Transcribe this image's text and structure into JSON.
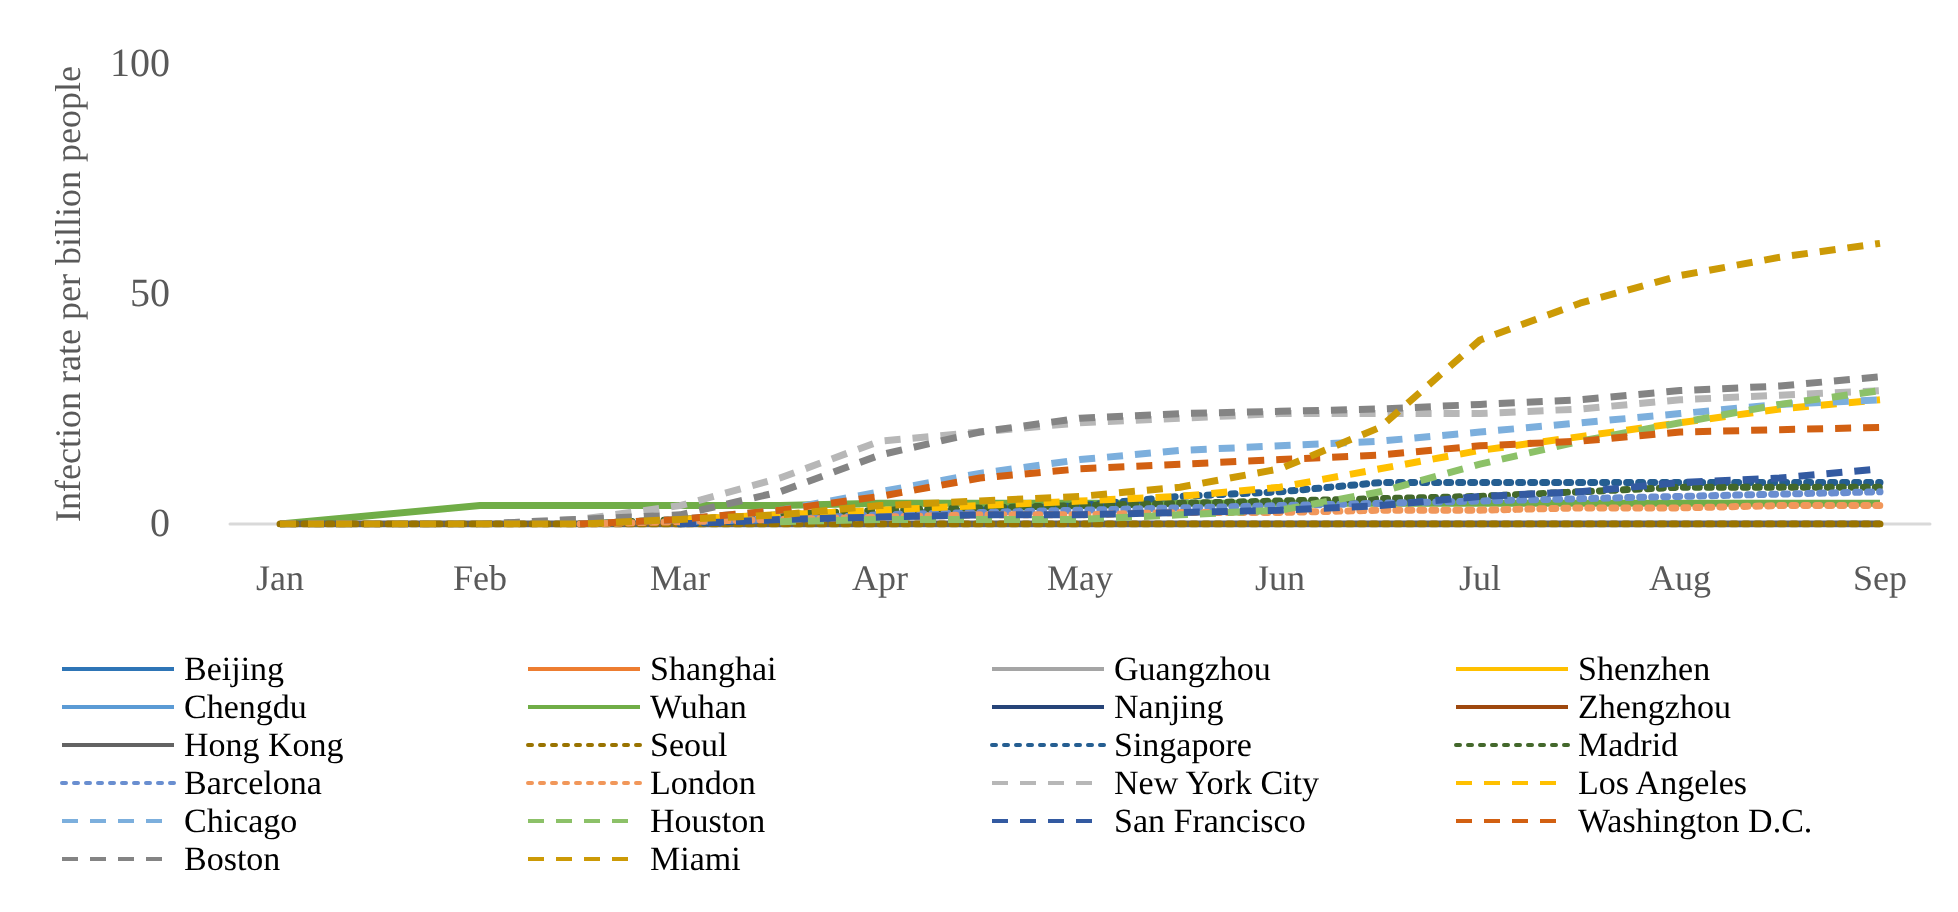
{
  "chart_data": {
    "type": "line",
    "ylabel": "Infection rate per billion people",
    "categories": [
      "Jan",
      null,
      "Feb",
      null,
      "Mar",
      null,
      "Apr",
      null,
      "May",
      null,
      "Jun",
      null,
      "Jul",
      null,
      "Aug",
      null,
      "Sep"
    ],
    "ylim": [
      0,
      100
    ],
    "yticks": [
      0,
      50,
      100
    ],
    "grid": false,
    "legend": "bottom",
    "marker": "none",
    "series": [
      {
        "name": "Beijing",
        "color": "#2e75b6",
        "line_style": "solid",
        "values": [
          null,
          null,
          null,
          null,
          null,
          null,
          null,
          null,
          null,
          null,
          null,
          null,
          null,
          null,
          null,
          null,
          null
        ]
      },
      {
        "name": "Shanghai",
        "color": "#ed7d31",
        "line_style": "solid",
        "values": [
          null,
          null,
          null,
          null,
          null,
          null,
          null,
          null,
          null,
          null,
          null,
          null,
          null,
          null,
          null,
          null,
          null
        ]
      },
      {
        "name": "Guangzhou",
        "color": "#a5a5a5",
        "line_style": "solid",
        "values": [
          null,
          null,
          null,
          null,
          null,
          null,
          null,
          null,
          null,
          null,
          null,
          null,
          null,
          null,
          null,
          null,
          null
        ]
      },
      {
        "name": "Shenzhen",
        "color": "#ffc000",
        "line_style": "solid",
        "values": [
          null,
          null,
          null,
          null,
          null,
          null,
          null,
          null,
          null,
          null,
          null,
          null,
          null,
          null,
          null,
          null,
          null
        ]
      },
      {
        "name": "Chengdu",
        "color": "#5b9bd5",
        "line_style": "solid",
        "values": [
          null,
          null,
          null,
          null,
          null,
          null,
          null,
          null,
          null,
          null,
          null,
          null,
          null,
          null,
          null,
          null,
          null
        ]
      },
      {
        "name": "Wuhan",
        "color": "#70ad47",
        "line_style": "solid",
        "values": [
          0,
          2,
          4,
          4,
          4,
          4,
          4.5,
          4.5,
          4.5,
          4.5,
          4.5,
          4.5,
          4.5,
          4.5,
          4.5,
          4.5,
          4.5
        ]
      },
      {
        "name": "Nanjing",
        "color": "#264478",
        "line_style": "solid",
        "values": [
          null,
          null,
          null,
          null,
          null,
          null,
          null,
          null,
          null,
          null,
          null,
          null,
          null,
          null,
          null,
          null,
          null
        ]
      },
      {
        "name": "Zhengzhou",
        "color": "#9e480e",
        "line_style": "solid",
        "values": [
          null,
          null,
          null,
          null,
          null,
          null,
          null,
          null,
          null,
          null,
          null,
          null,
          null,
          null,
          null,
          null,
          null
        ]
      },
      {
        "name": "Hong Kong",
        "color": "#636363",
        "line_style": "solid",
        "values": [
          0,
          0,
          0,
          0,
          0,
          0,
          0,
          0,
          0,
          0,
          0,
          0,
          0,
          0,
          0,
          0,
          0
        ]
      },
      {
        "name": "Seoul",
        "color": "#997300",
        "line_style": "dotted",
        "values": [
          0,
          0,
          0,
          0,
          0,
          0,
          0,
          0,
          0,
          0,
          0,
          0,
          0,
          0,
          0,
          0,
          0
        ]
      },
      {
        "name": "Singapore",
        "color": "#255e91",
        "line_style": "dotted",
        "values": [
          null,
          null,
          null,
          null,
          0,
          1,
          2,
          3,
          4,
          6,
          7,
          9,
          9,
          9,
          9,
          9,
          9
        ]
      },
      {
        "name": "Madrid",
        "color": "#43682b",
        "line_style": "dotted",
        "values": [
          null,
          null,
          null,
          0,
          1,
          2,
          3,
          3.5,
          4,
          4.5,
          5,
          5.5,
          6,
          7,
          8,
          8,
          8
        ]
      },
      {
        "name": "Barcelona",
        "color": "#698ed0",
        "line_style": "dotted",
        "values": [
          null,
          null,
          null,
          null,
          0.5,
          1,
          2,
          2.5,
          3,
          3.5,
          4,
          4.5,
          5,
          5.5,
          6,
          6.5,
          7
        ]
      },
      {
        "name": "London",
        "color": "#f1975a",
        "line_style": "dotted",
        "values": [
          null,
          null,
          null,
          0,
          0.5,
          1,
          1.5,
          2,
          2,
          2.5,
          2.5,
          3,
          3,
          3.5,
          3.5,
          4,
          4
        ]
      },
      {
        "name": "New York City",
        "color": "#b7b7b7",
        "line_style": "dashed",
        "values": [
          0,
          0,
          0,
          1,
          4,
          10,
          18,
          20,
          22,
          23,
          24,
          24,
          24,
          25,
          27,
          28,
          29
        ]
      },
      {
        "name": "Los Angeles",
        "color": "#ffc000",
        "line_style": "dashed",
        "values": [
          null,
          null,
          null,
          null,
          1,
          2,
          3,
          4,
          5,
          6,
          8,
          12,
          16,
          19,
          22,
          25,
          27
        ]
      },
      {
        "name": "Chicago",
        "color": "#7cafdd",
        "line_style": "dashed",
        "values": [
          null,
          null,
          null,
          0,
          1,
          3,
          7,
          11,
          14,
          16,
          17,
          18,
          20,
          22,
          24,
          26,
          27
        ]
      },
      {
        "name": "Houston",
        "color": "#8cc168",
        "line_style": "dashed",
        "values": [
          null,
          null,
          null,
          null,
          null,
          0.5,
          1,
          1,
          1,
          2,
          3,
          7,
          13,
          18,
          22,
          26,
          29
        ]
      },
      {
        "name": "San Francisco",
        "color": "#335aa1",
        "line_style": "dashed",
        "values": [
          null,
          null,
          null,
          null,
          0,
          1,
          1.5,
          2,
          2,
          2.5,
          3,
          4,
          6,
          7,
          9,
          10,
          12
        ]
      },
      {
        "name": "Washington D.C.",
        "color": "#d26012",
        "line_style": "dashed",
        "values": [
          null,
          null,
          null,
          0,
          1,
          3,
          6,
          10,
          12,
          13,
          14,
          15,
          17,
          18,
          20,
          20.5,
          21
        ]
      },
      {
        "name": "Boston",
        "color": "#848484",
        "line_style": "dashed",
        "values": [
          0,
          0,
          0,
          1,
          2,
          7,
          15,
          20,
          23,
          24,
          24.5,
          25,
          26,
          27,
          29,
          30,
          32
        ]
      },
      {
        "name": "Miami",
        "color": "#cc9a06",
        "line_style": "dashed",
        "values": [
          0,
          0,
          0,
          0,
          1,
          2,
          4,
          5,
          6,
          8,
          12,
          21,
          40,
          48,
          54,
          58,
          61
        ]
      }
    ]
  }
}
